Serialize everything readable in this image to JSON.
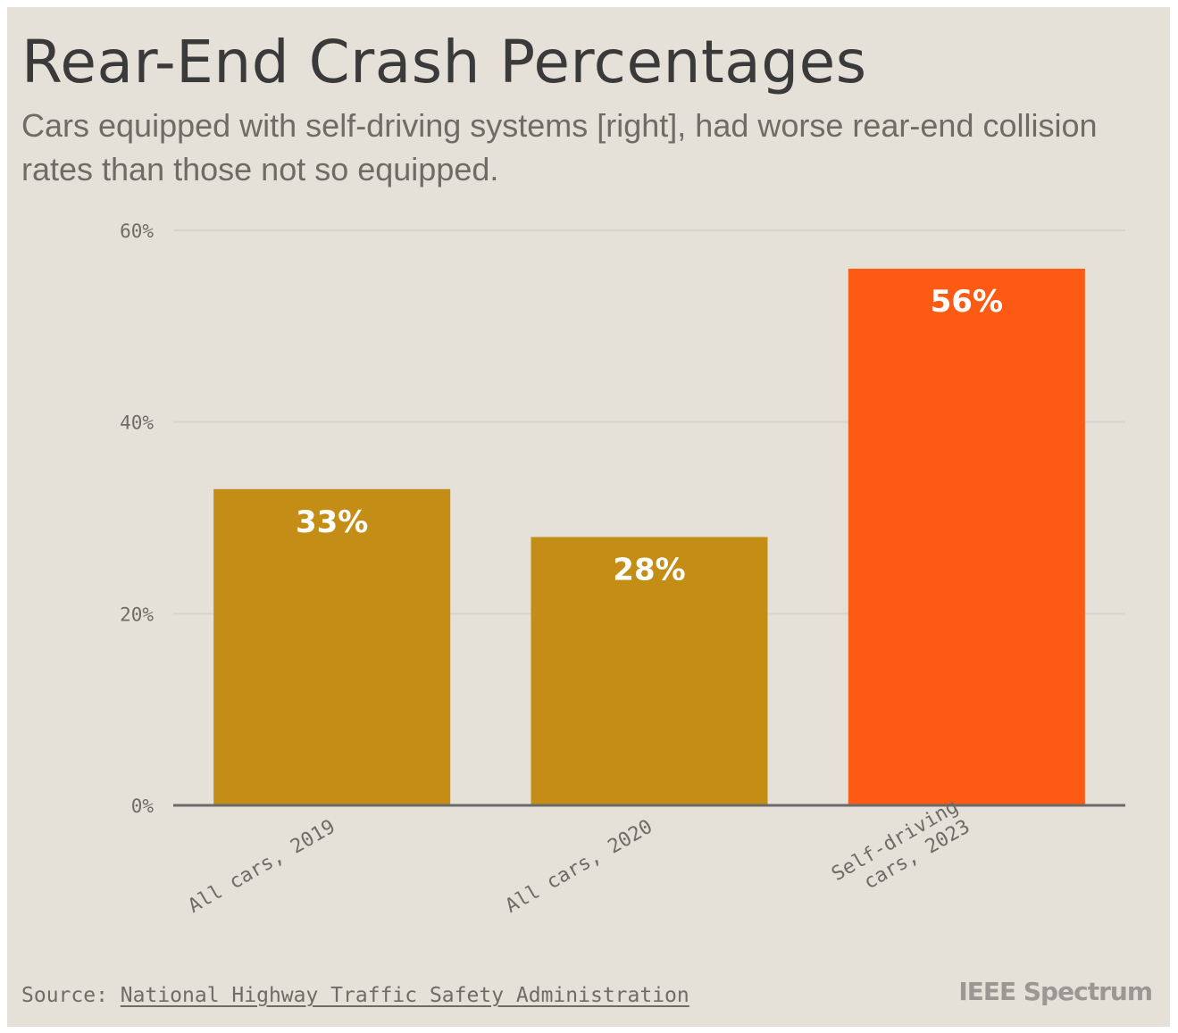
{
  "header": {
    "title": "Rear-End Crash Percentages",
    "subtitle": "Cars equipped with self-driving systems [right], had worse rear-end collision rates than those not so equipped."
  },
  "chart_data": {
    "type": "bar",
    "title": "Rear-End Crash Percentages",
    "subtitle": "Cars equipped with self-driving systems [right], had worse rear-end collision rates than those not so equipped.",
    "categories": [
      "All cars, 2019",
      "All cars, 2020",
      "Self-driving cars, 2023"
    ],
    "category_label_lines": [
      [
        "All cars, 2019"
      ],
      [
        "All cars, 2020"
      ],
      [
        "Self-driving",
        "cars, 2023"
      ]
    ],
    "values": [
      33,
      28,
      56
    ],
    "data_labels": [
      "33%",
      "28%",
      "56%"
    ],
    "bar_colors": [
      "#c48e16",
      "#c48e16",
      "#fd5b14"
    ],
    "xlabel": "",
    "ylabel": "",
    "ylim": [
      0,
      60
    ],
    "yticks": [
      0,
      20,
      40,
      60
    ],
    "ytick_labels": [
      "0%",
      "20%",
      "40%",
      "60%"
    ],
    "grid": true,
    "legend": "none"
  },
  "footer": {
    "source_prefix": "Source: ",
    "source_link": "National Highway Traffic Safety Administration",
    "logo": "IEEE Spectrum"
  },
  "colors": {
    "background": "#e5e1d8",
    "title": "#3a3a3a",
    "muted_text": "#6f6b66",
    "gridline": "#d6d3d0",
    "axis": "#6a6a6a",
    "bar_regular": "#c48e16",
    "bar_highlight": "#fd5b14",
    "label_on_bar": "#ffffff"
  }
}
